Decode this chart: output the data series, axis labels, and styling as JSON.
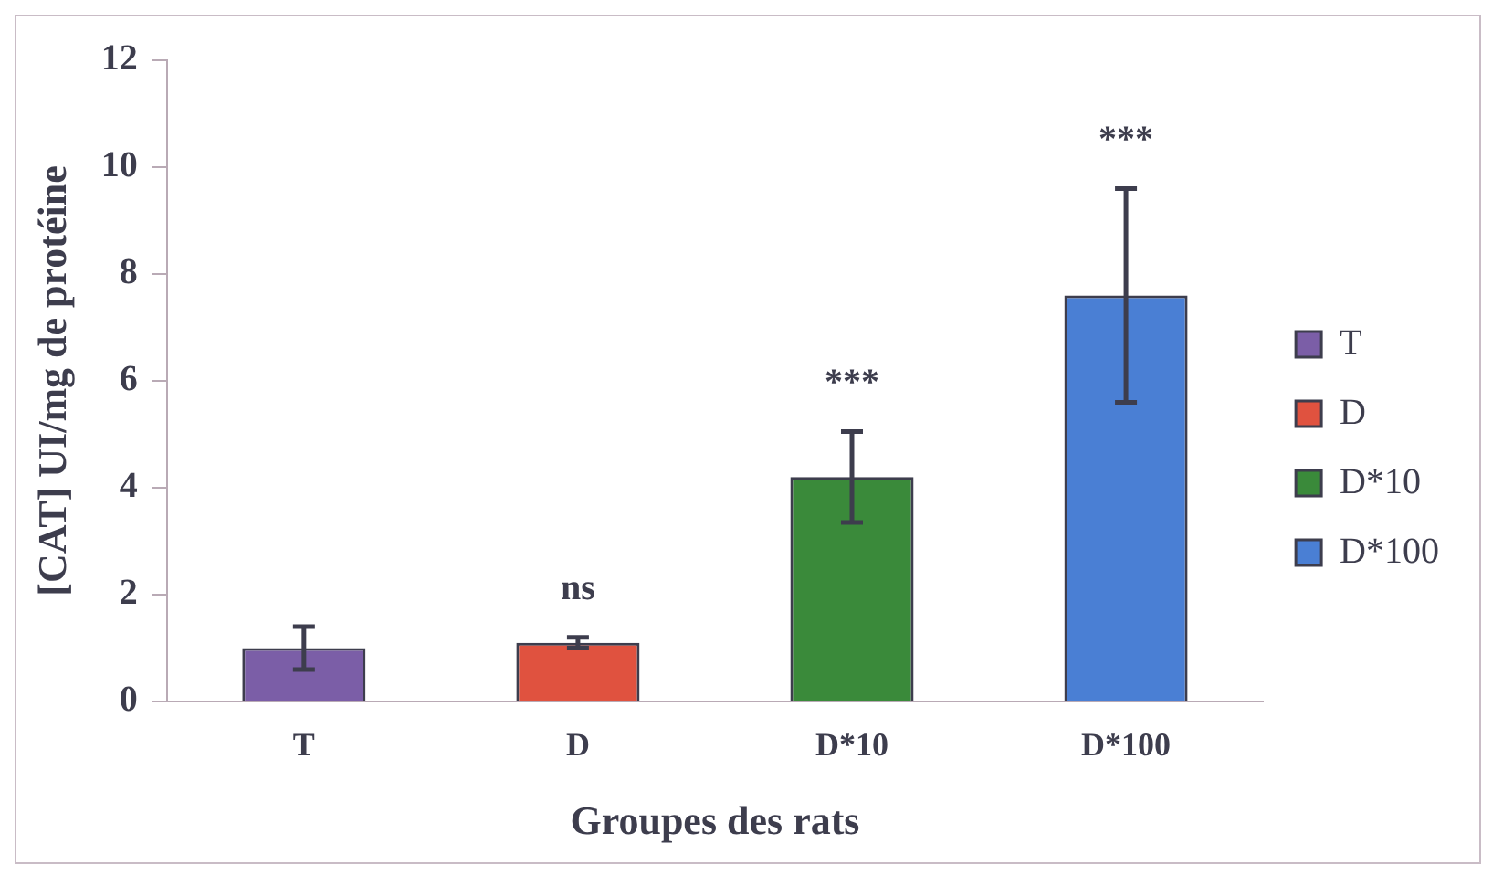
{
  "chart_data": {
    "type": "bar",
    "xlabel": "Groupes des rats",
    "ylabel": "[CAT] UI/mg de protéine",
    "categories": [
      "T",
      "D",
      "D*10",
      "D*100"
    ],
    "series": [
      {
        "name": "T",
        "color": "#7b5ea7",
        "values": [
          1.0,
          null,
          null,
          null
        ],
        "errors": [
          0.4,
          null,
          null,
          null
        ]
      },
      {
        "name": "D",
        "color": "#e0523f",
        "values": [
          null,
          1.1,
          null,
          null
        ],
        "errors": [
          null,
          0.1,
          null,
          null
        ]
      },
      {
        "name": "D*10",
        "color": "#3a8a3a",
        "values": [
          null,
          null,
          4.2,
          null
        ],
        "errors": [
          null,
          null,
          0.85,
          null
        ]
      },
      {
        "name": "D*100",
        "color": "#4a7fd4",
        "values": [
          null,
          null,
          null,
          7.6
        ],
        "errors": [
          null,
          null,
          null,
          2.0
        ]
      }
    ],
    "ylim": [
      0,
      12
    ],
    "yticks": [
      0,
      2,
      4,
      6,
      8,
      10,
      12
    ],
    "grid": false,
    "legend": "right",
    "annotations": [
      {
        "text": "ns",
        "x": "D",
        "y": 1.2
      },
      {
        "text": "***",
        "x": "D*10",
        "y": 5.05
      },
      {
        "text": "***",
        "x": "D*100",
        "y": 9.6
      }
    ]
  }
}
